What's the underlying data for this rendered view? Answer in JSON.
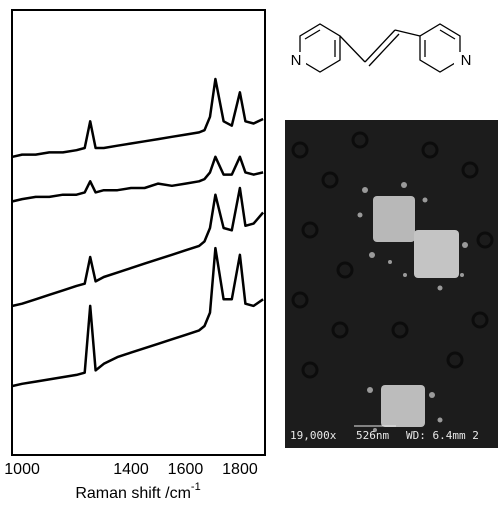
{
  "chart_data": {
    "type": "line",
    "x_label": "Raman shift /cm",
    "x_label_sup": "-1",
    "x": [
      965,
      1000,
      1050,
      1100,
      1150,
      1200,
      1230,
      1250,
      1270,
      1300,
      1350,
      1400,
      1450,
      1500,
      1550,
      1600,
      1650,
      1670,
      1690,
      1710,
      1740,
      1770,
      1800,
      1820,
      1850,
      1885
    ],
    "xlim": [
      963,
      1892
    ],
    "xticks": [
      1000,
      1400,
      1600,
      1800
    ],
    "ylim": [
      0,
      100
    ],
    "series": [
      {
        "color": "#000000",
        "values": [
          67,
          67.5,
          67.5,
          68,
          68,
          68.5,
          69,
          75,
          69,
          69,
          69.5,
          70,
          70.5,
          71,
          71.5,
          72,
          72.5,
          73,
          76,
          84.5,
          75,
          74,
          81.5,
          75,
          74.5,
          75.5
        ]
      },
      {
        "color": "#000000",
        "values": [
          57,
          57.5,
          58,
          58,
          58.5,
          58.5,
          59,
          61.5,
          59,
          59.5,
          59.5,
          60,
          60,
          61,
          60.5,
          61,
          61.5,
          62,
          63.5,
          67,
          63,
          63,
          67,
          63.5,
          63,
          63.5
        ]
      },
      {
        "color": "#000000",
        "values": [
          33.5,
          34,
          35,
          36,
          37,
          38,
          38.5,
          44.5,
          39,
          40,
          41,
          42,
          43,
          44,
          45,
          46,
          47,
          48,
          51,
          58.5,
          51,
          50.5,
          60,
          51.5,
          52,
          54.5
        ]
      },
      {
        "color": "#000000",
        "values": [
          15.5,
          16,
          16.5,
          17,
          17.5,
          18,
          18.5,
          33.5,
          19,
          20.5,
          22,
          23,
          24,
          25,
          26,
          27,
          28,
          29,
          32,
          46.5,
          35,
          35,
          45,
          34,
          33.5,
          35
        ]
      }
    ]
  },
  "structure": {
    "atoms": [
      "N",
      "N"
    ]
  },
  "sem_image": {
    "magnification": "19,000x",
    "scale": "526nm",
    "wd": "WD: 6.4mm 2"
  }
}
